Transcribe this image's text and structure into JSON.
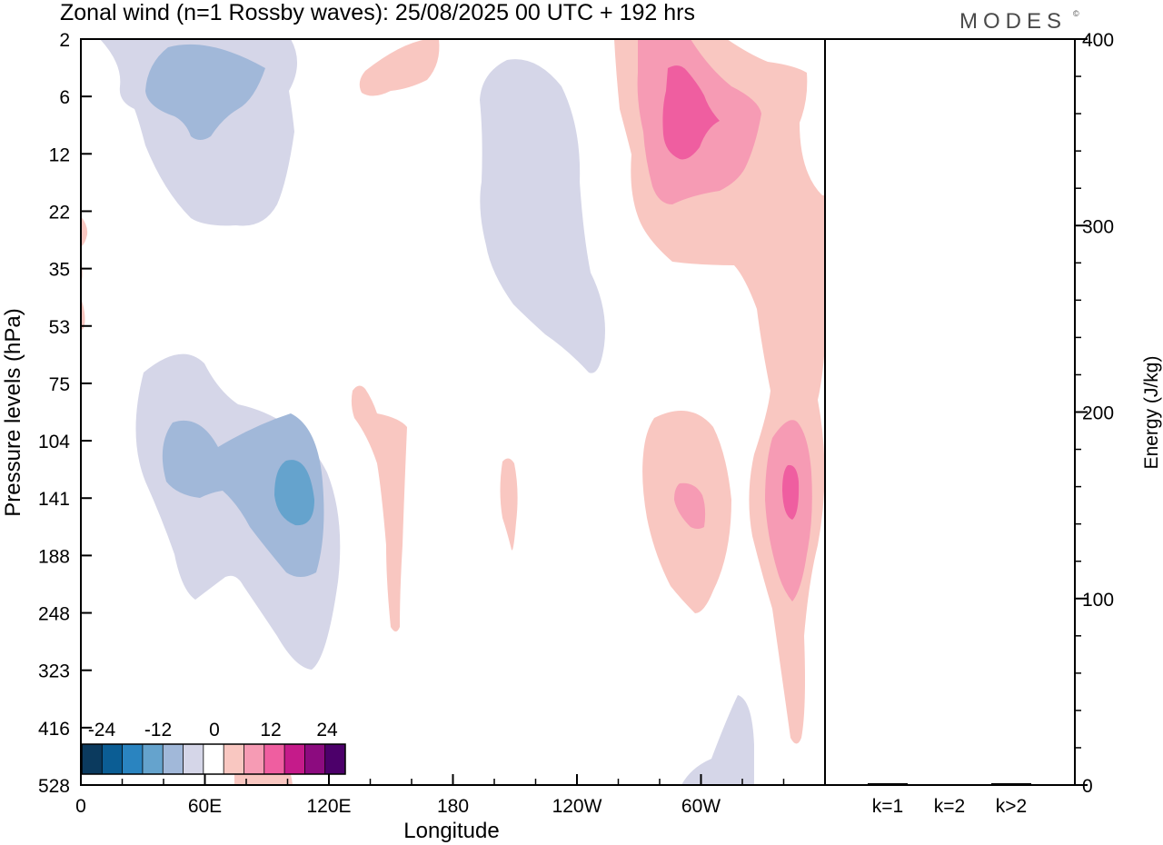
{
  "header": {
    "title": "Zonal wind (n=1 Rossby waves):  25/08/2025  00 UTC  + 192 hrs",
    "brand": "MODES",
    "brand_mark": "©"
  },
  "chart_data": [
    {
      "type": "heatmap",
      "title": "Zonal wind (n=1 Rossby waves):  25/08/2025  00 UTC  + 192 hrs",
      "xlabel": "Longitude",
      "ylabel": "Pressure levels (hPa)",
      "x_ticks": [
        "0",
        "60E",
        "120E",
        "180",
        "120W",
        "60W"
      ],
      "x_tick_degrees": [
        0,
        60,
        120,
        180,
        240,
        300
      ],
      "xlim": [
        0,
        360
      ],
      "y_ticks": [
        "2",
        "6",
        "12",
        "22",
        "35",
        "53",
        "75",
        "104",
        "141",
        "188",
        "248",
        "323",
        "416",
        "528"
      ],
      "colorbar": {
        "labels": [
          "-24",
          "-12",
          "0",
          "12",
          "24"
        ],
        "levels": [
          -30,
          -25,
          -20,
          -15,
          -10,
          -5,
          5,
          10,
          15,
          20,
          25,
          30
        ],
        "colors": [
          "#0b3a5e",
          "#0b5d94",
          "#2a84c0",
          "#65a3cd",
          "#a1b8d9",
          "#d5d6e8",
          "#ffffff",
          "#f9c7c1",
          "#f69bb4",
          "#ef5ea0",
          "#c51b8a",
          "#8c0b7f",
          "#4c006a"
        ]
      },
      "contours": [
        {
          "name": "upper-west-negative",
          "value": -5,
          "color": "#d5d6e8"
        },
        {
          "name": "upper-west-core",
          "value": -10,
          "color": "#a1b8d9"
        },
        {
          "name": "central-upper-negative",
          "value": -5,
          "color": "#d5d6e8"
        },
        {
          "name": "lower-west-negative",
          "value": -5,
          "color": "#d5d6e8"
        },
        {
          "name": "lower-west-core",
          "value": -10,
          "color": "#a1b8d9"
        },
        {
          "name": "lower-west-center",
          "value": -15,
          "color": "#65a3cd"
        },
        {
          "name": "surface-negative",
          "value": -5,
          "color": "#d5d6e8"
        },
        {
          "name": "upper-east-positive",
          "value": 5,
          "color": "#f9c7c1"
        },
        {
          "name": "upper-east-core",
          "value": 10,
          "color": "#f69bb4"
        },
        {
          "name": "upper-east-center",
          "value": 15,
          "color": "#ef5ea0"
        },
        {
          "name": "lower-east-positive",
          "value": 5,
          "color": "#f9c7c1"
        },
        {
          "name": "lower-east-core",
          "value": 10,
          "color": "#f69bb4"
        },
        {
          "name": "lower-east-center",
          "value": 15,
          "color": "#ef5ea0"
        }
      ]
    },
    {
      "type": "bar",
      "ylabel": "Energy (J/kg)",
      "categories": [
        "k=1",
        "k=2",
        "k>2"
      ],
      "values": [
        1,
        0.5,
        1
      ],
      "ylim": [
        0,
        400
      ],
      "y_ticks": [
        "0",
        "100",
        "200",
        "300",
        "400"
      ],
      "y_tick_values": [
        0,
        100,
        200,
        300,
        400
      ]
    }
  ]
}
